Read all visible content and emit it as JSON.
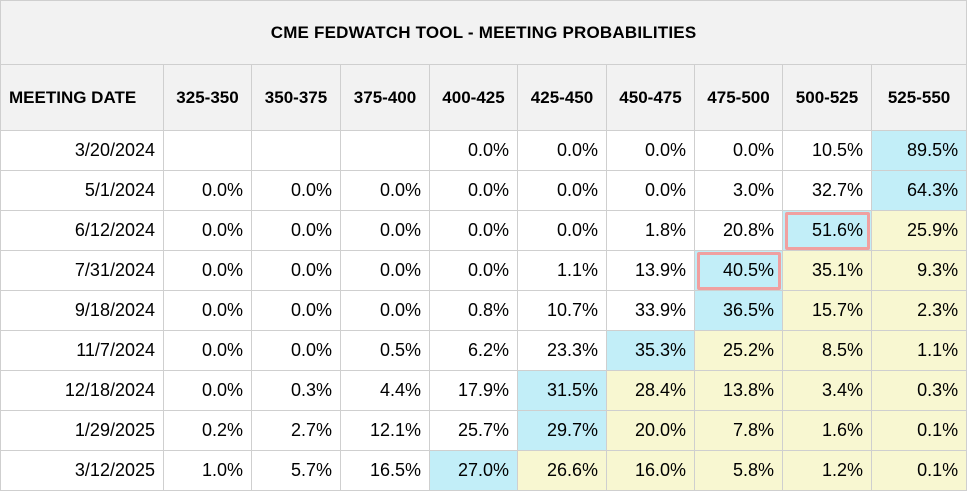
{
  "title": "CME FEDWATCH TOOL - MEETING PROBABILITIES",
  "columns": [
    "MEETING DATE",
    "325-350",
    "350-375",
    "375-400",
    "400-425",
    "425-450",
    "450-475",
    "475-500",
    "500-525",
    "525-550"
  ],
  "rows": [
    {
      "date": "3/20/2024",
      "values": [
        "",
        "",
        "",
        "0.0%",
        "0.0%",
        "0.0%",
        "0.0%",
        "10.5%",
        "89.5%"
      ]
    },
    {
      "date": "5/1/2024",
      "values": [
        "0.0%",
        "0.0%",
        "0.0%",
        "0.0%",
        "0.0%",
        "0.0%",
        "3.0%",
        "32.7%",
        "64.3%"
      ]
    },
    {
      "date": "6/12/2024",
      "values": [
        "0.0%",
        "0.0%",
        "0.0%",
        "0.0%",
        "0.0%",
        "1.8%",
        "20.8%",
        "51.6%",
        "25.9%"
      ]
    },
    {
      "date": "7/31/2024",
      "values": [
        "0.0%",
        "0.0%",
        "0.0%",
        "0.0%",
        "1.1%",
        "13.9%",
        "40.5%",
        "35.1%",
        "9.3%"
      ]
    },
    {
      "date": "9/18/2024",
      "values": [
        "0.0%",
        "0.0%",
        "0.0%",
        "0.8%",
        "10.7%",
        "33.9%",
        "36.5%",
        "15.7%",
        "2.3%"
      ]
    },
    {
      "date": "11/7/2024",
      "values": [
        "0.0%",
        "0.0%",
        "0.5%",
        "6.2%",
        "23.3%",
        "35.3%",
        "25.2%",
        "8.5%",
        "1.1%"
      ]
    },
    {
      "date": "12/18/2024",
      "values": [
        "0.0%",
        "0.3%",
        "4.4%",
        "17.9%",
        "31.5%",
        "28.4%",
        "13.8%",
        "3.4%",
        "0.3%"
      ]
    },
    {
      "date": "1/29/2025",
      "values": [
        "0.2%",
        "2.7%",
        "12.1%",
        "25.7%",
        "29.7%",
        "20.0%",
        "7.8%",
        "1.6%",
        "0.1%"
      ]
    },
    {
      "date": "3/12/2025",
      "values": [
        "1.0%",
        "5.7%",
        "16.5%",
        "27.0%",
        "26.6%",
        "16.0%",
        "5.8%",
        "1.2%",
        "0.1%"
      ]
    }
  ],
  "colors": {
    "max_cell": "#c2eef8",
    "above_max": "#f8f7d1",
    "highlight_border": "#f0a0a0",
    "header_bg": "#f2f2f2"
  }
}
